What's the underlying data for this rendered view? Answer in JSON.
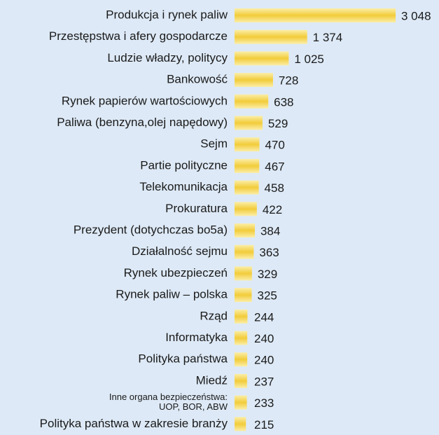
{
  "chart_data": {
    "type": "barh",
    "categories": [
      "Produkcja i rynek paliw",
      "Przestępstwa i afery gospodarcze",
      "Ludzie władzy, politycy",
      "Bankowość",
      "Rynek papierów wartościowych",
      "Paliwa  (benzyna,olej napędowy)",
      "Sejm",
      "Partie polityczne",
      "Telekomunikacja",
      "Prokuratura",
      "Prezydent (dotychczas bo5a)",
      "Działalność sejmu",
      "Rynek ubezpieczeń",
      "Rynek paliw – polska",
      "Rząd",
      "Informatyka",
      "Polityka państwa",
      "Miedź",
      [
        "Inne organa bezpieczeństwa:",
        "UOP, BOR, ABW"
      ],
      "Polityka państwa w zakresie branży"
    ],
    "values": [
      3048,
      1374,
      1025,
      728,
      638,
      529,
      470,
      467,
      458,
      422,
      384,
      363,
      329,
      325,
      244,
      240,
      240,
      237,
      233,
      215
    ],
    "value_labels": [
      "3 048",
      "1 374",
      "1 025",
      "728",
      "638",
      "529",
      "470",
      "467",
      "458",
      "422",
      "384",
      "363",
      "329",
      "325",
      "244",
      "240",
      "240",
      "237",
      "233",
      "215"
    ],
    "color": "#f2cc3a"
  }
}
